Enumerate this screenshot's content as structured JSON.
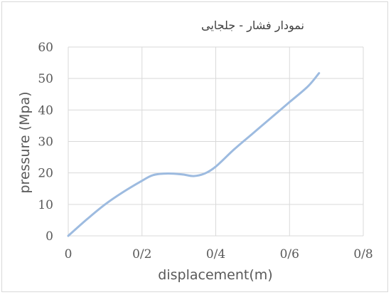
{
  "chart_data": {
    "type": "line",
    "title": "نمودار فشار - جلجایی",
    "xlabel": "displacement(m)",
    "ylabel": "pressure (Mpa)",
    "xlim": [
      0,
      0.8
    ],
    "ylim": [
      0,
      60
    ],
    "x_ticks": [
      "0",
      "0/2",
      "0/4",
      "0/6",
      "0/8"
    ],
    "y_ticks": [
      "0",
      "10",
      "20",
      "30",
      "40",
      "50",
      "60"
    ],
    "grid": "vertical and horizontal",
    "legend": "none",
    "series": [
      {
        "color": "#9dbbe0",
        "x": [
          0,
          0.05,
          0.1,
          0.15,
          0.2,
          0.23,
          0.27,
          0.31,
          0.34,
          0.37,
          0.4,
          0.45,
          0.5,
          0.55,
          0.6,
          0.65,
          0.68
        ],
        "y": [
          0,
          5.2,
          10,
          14,
          17.5,
          19.3,
          19.8,
          19.5,
          19,
          19.8,
          22,
          27.5,
          32.5,
          37.5,
          42.5,
          47.5,
          51.7
        ]
      }
    ]
  }
}
